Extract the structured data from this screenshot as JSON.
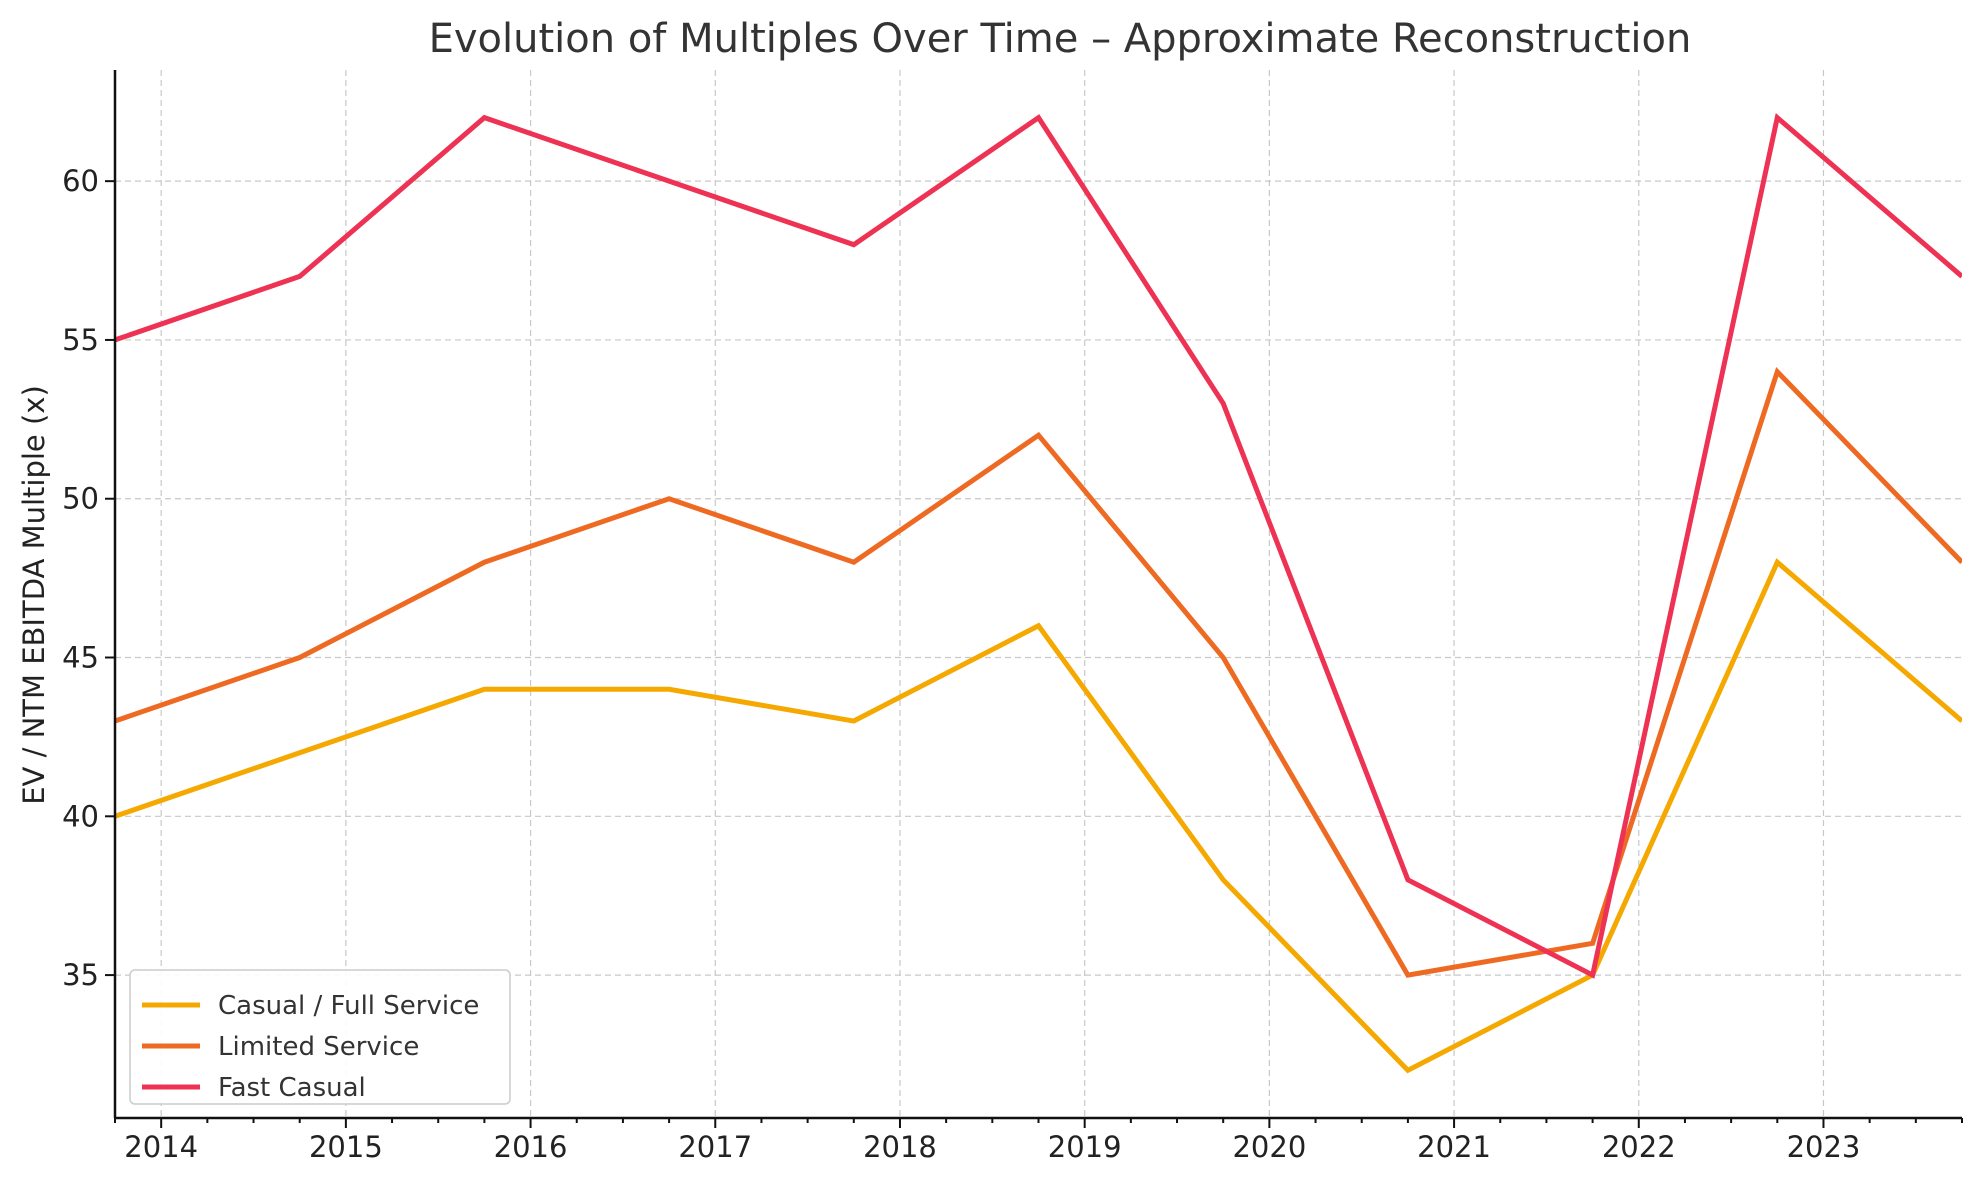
{
  "chart_data": {
    "type": "line",
    "title": "Evolution of Multiples Over Time – Approximate Reconstruction",
    "xlabel": "",
    "ylabel": "EV / NTM EBITDA Multiple (x)",
    "x": [
      2013.75,
      2014.75,
      2015.75,
      2016.75,
      2017.75,
      2018.75,
      2019.75,
      2020.75,
      2021.75,
      2022.75,
      2023.75
    ],
    "xlim": [
      2013.75,
      2023.75
    ],
    "ylim": [
      30.5,
      63.5
    ],
    "xticks": [
      2014,
      2015,
      2016,
      2017,
      2018,
      2019,
      2020,
      2021,
      2022,
      2023
    ],
    "xtick_labels": [
      "2014",
      "2015",
      "2016",
      "2017",
      "2018",
      "2019",
      "2020",
      "2021",
      "2022",
      "2023"
    ],
    "yticks": [
      35,
      40,
      45,
      50,
      55,
      60
    ],
    "ytick_labels": [
      "35",
      "40",
      "45",
      "50",
      "55",
      "60"
    ],
    "grid": true,
    "legend_position": "bottom-left",
    "series": [
      {
        "name": "Casual / Full Service",
        "color": "#F5A800",
        "values": [
          40,
          42,
          44,
          44,
          43,
          46,
          38,
          32,
          35,
          48,
          43
        ]
      },
      {
        "name": "Limited Service",
        "color": "#EE6A22",
        "values": [
          43,
          45,
          48,
          50,
          48,
          52,
          45,
          35,
          36,
          54,
          48
        ]
      },
      {
        "name": "Fast Casual",
        "color": "#EE3254",
        "values": [
          55,
          57,
          62,
          60,
          58,
          62,
          53,
          38,
          35,
          62,
          57
        ]
      }
    ]
  }
}
